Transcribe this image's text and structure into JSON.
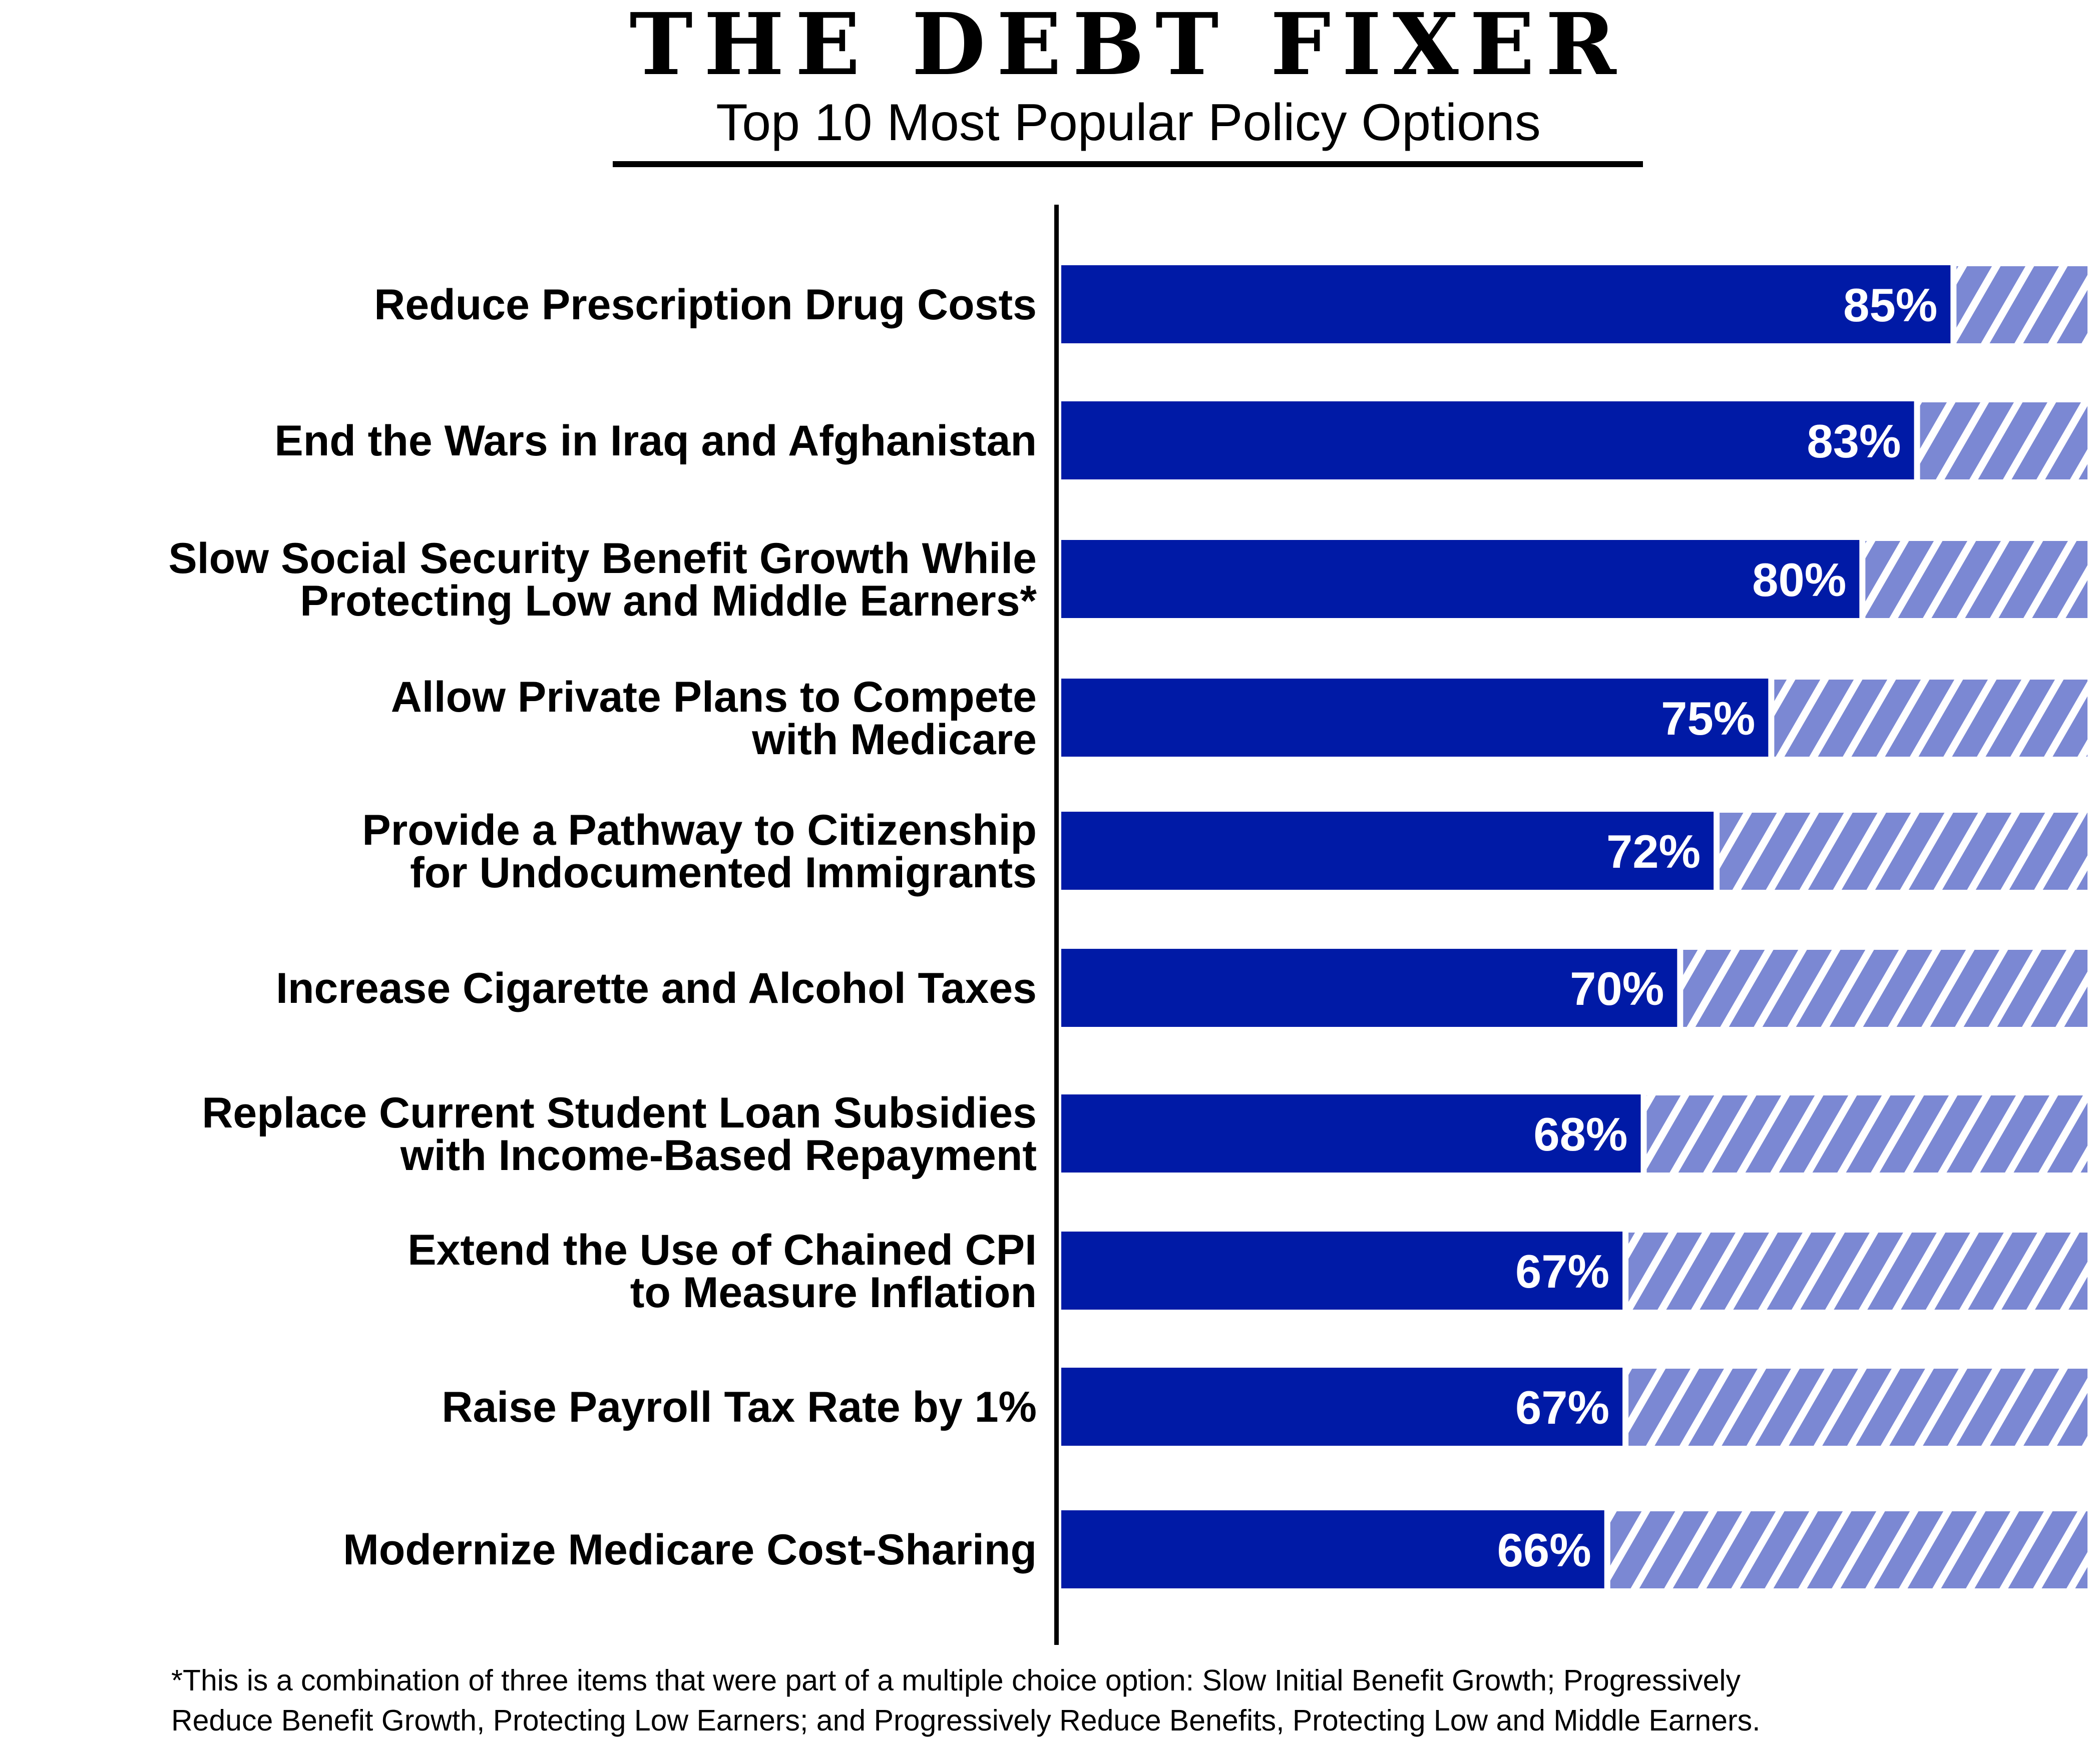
{
  "chart_data": {
    "type": "bar",
    "orientation": "horizontal",
    "title": "THE DEBT FIXER",
    "subtitle": "Top 10 Most Popular Policy Options",
    "categories": [
      [
        "Reduce Prescription Drug Costs"
      ],
      [
        "End the Wars in Iraq and Afghanistan"
      ],
      [
        "Slow Social Security Benefit Growth While",
        "Protecting Low and Middle Earners*"
      ],
      [
        "Allow Private Plans to Compete",
        "with Medicare"
      ],
      [
        "Provide a Pathway to Citizenship",
        "for Undocumented Immigrants"
      ],
      [
        "Increase Cigarette and Alcohol Taxes"
      ],
      [
        "Replace Current Student Loan Subsidies",
        "with Income-Based Repayment"
      ],
      [
        "Extend the Use of Chained CPI",
        "to Measure Inflation"
      ],
      [
        "Raise Payroll Tax Rate by 1%"
      ],
      [
        "Modernize Medicare Cost-Sharing"
      ]
    ],
    "values": [
      85,
      83,
      80,
      75,
      72,
      70,
      68,
      67,
      67,
      66
    ],
    "data_labels": [
      "85%",
      "83%",
      "80%",
      "75%",
      "72%",
      "70%",
      "68%",
      "67%",
      "67%",
      "66%"
    ],
    "remainder_style": "hatched",
    "xlabel": "",
    "ylabel": "",
    "grid": false,
    "legend": "none",
    "colors": {
      "bar": "#001aa6",
      "remainder": "#7b88d3",
      "stripe": "#ffffff"
    },
    "footnote": [
      "*This is a combination of three items that were part of a multiple choice option: Slow Initial Benefit Growth; Progressively",
      "Reduce Benefit Growth, Protecting Low Earners; and Progressively Reduce Benefits, Protecting Low and Middle Earners."
    ]
  }
}
